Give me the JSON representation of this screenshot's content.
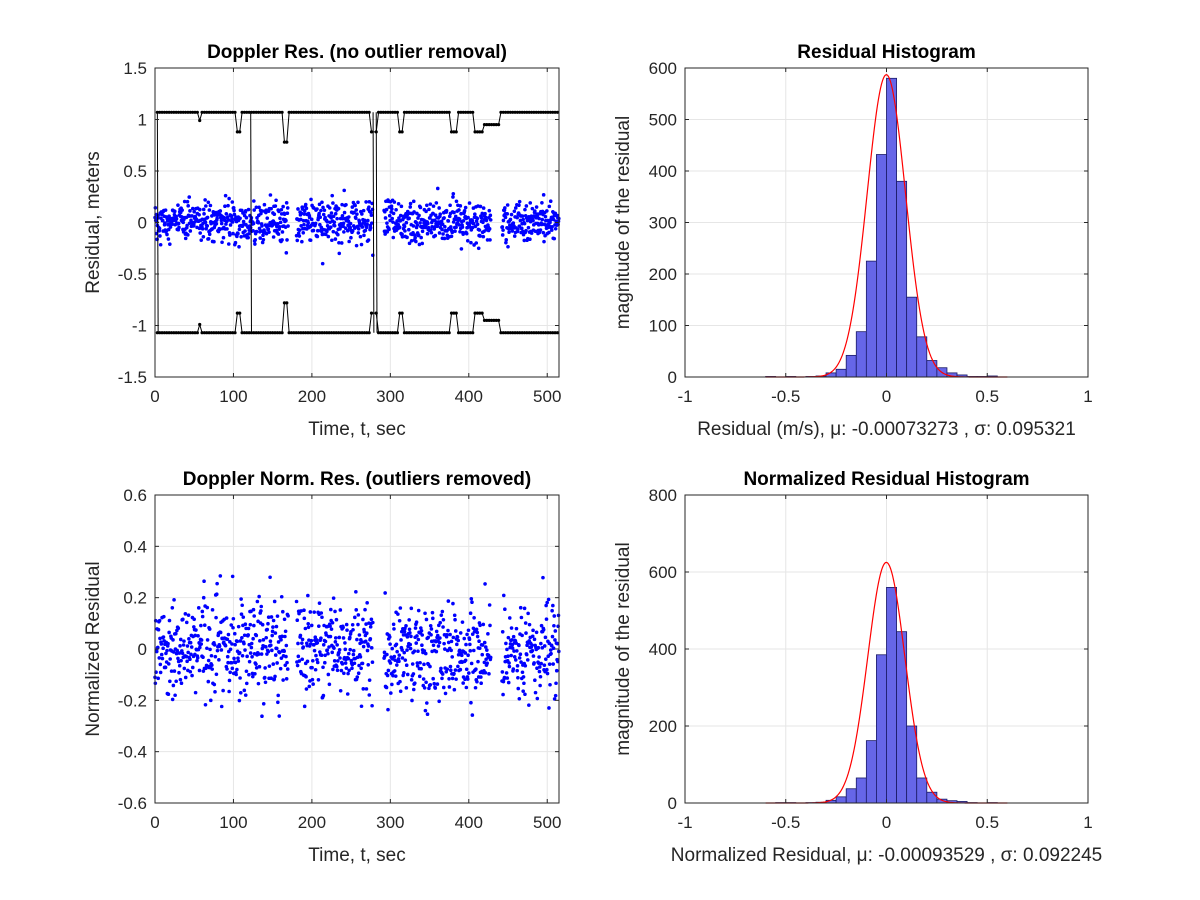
{
  "figure": {
    "background": "#ffffff"
  },
  "colors": {
    "scatter": "#0000ff",
    "outlier_trace": "#000000",
    "bar_fill": "#6666e8",
    "bar_edge": "#1a1a66",
    "fit_curve": "#ff0000",
    "grid": "#e6e6e6",
    "axis": "#262626"
  },
  "chart_data": [
    {
      "id": "p1",
      "type": "scatter",
      "title": "Doppler Res. (no outlier removal)",
      "xlabel": "Time, t, sec",
      "ylabel": "Residual, meters",
      "xlim": [
        0,
        515
      ],
      "ylim": [
        -1.5,
        1.5
      ],
      "xticks": [
        "0",
        "100",
        "200",
        "300",
        "400",
        "500"
      ],
      "xtick_values": [
        0,
        100,
        200,
        300,
        400,
        500
      ],
      "yticks": [
        "-1.5",
        "-1",
        "-0.5",
        "0",
        "0.5",
        "1",
        "1.5"
      ],
      "ytick_values": [
        -1.5,
        -1,
        -0.5,
        0,
        0.5,
        1,
        1.5
      ],
      "grid": true,
      "series": [
        {
          "kind": "scatter",
          "description": "residuals clustered about 0, std ~0.1 m, extremes ~+0.47 / -0.51 m",
          "gaps_sec": [
            [
              170,
              180
            ],
            [
              278,
              292
            ],
            [
              428,
              442
            ]
          ],
          "x_range": [
            0,
            515
          ],
          "approx_std": 0.1,
          "color": "#0000ff"
        },
        {
          "kind": "line",
          "description": "outlier traces at about +1.07 and -1.07 m with dips toward +/-0.78 m",
          "upper_level": 1.07,
          "lower_level": -1.07,
          "color": "#000000",
          "dips_sec": [
            [
              55,
              58,
              0.99
            ],
            [
              105,
              110,
              0.88
            ],
            [
              163,
              170,
              0.78
            ],
            [
              275,
              282,
              0.88
            ],
            [
              310,
              315,
              0.88
            ],
            [
              378,
              385,
              0.88
            ],
            [
              408,
              418,
              0.88
            ],
            [
              420,
              440,
              0.95
            ]
          ],
          "crossings_sec": [
            3,
            122,
            278,
            282
          ]
        }
      ]
    },
    {
      "id": "p2",
      "type": "bar",
      "title": "Residual Histogram",
      "xlabel": "Residual (m/s), μ: -0.00073273 , σ: 0.095321",
      "ylabel": "magnitude of the residual",
      "xlim": [
        -1,
        1
      ],
      "ylim": [
        0,
        600
      ],
      "xticks": [
        "-1",
        "-0.5",
        "0",
        "0.5",
        "1"
      ],
      "xtick_values": [
        -1,
        -0.5,
        0,
        0.5,
        1
      ],
      "yticks": [
        "0",
        "100",
        "200",
        "300",
        "400",
        "500",
        "600"
      ],
      "ytick_values": [
        0,
        100,
        200,
        300,
        400,
        500,
        600
      ],
      "grid": true,
      "bin_width": 0.05,
      "bin_centers": [
        -0.575,
        -0.525,
        -0.475,
        -0.425,
        -0.375,
        -0.325,
        -0.275,
        -0.225,
        -0.175,
        -0.125,
        -0.075,
        -0.025,
        0.025,
        0.075,
        0.125,
        0.175,
        0.225,
        0.275,
        0.325,
        0.375,
        0.425,
        0.475,
        0.525,
        0.575
      ],
      "values": [
        1,
        0,
        1,
        0,
        1,
        2,
        8,
        15,
        42,
        88,
        225,
        432,
        580,
        380,
        155,
        78,
        32,
        18,
        8,
        4,
        1,
        1,
        2,
        0
      ],
      "fit_curve": {
        "type": "normal",
        "mu": -0.00073273,
        "sigma": 0.095321,
        "peak": 587
      }
    },
    {
      "id": "p3",
      "type": "scatter",
      "title": "Doppler Norm. Res. (outliers removed)",
      "xlabel": "Time, t, sec",
      "ylabel": "Normalized Residual",
      "xlim": [
        0,
        515
      ],
      "ylim": [
        -0.6,
        0.6
      ],
      "xticks": [
        "0",
        "100",
        "200",
        "300",
        "400",
        "500"
      ],
      "xtick_values": [
        0,
        100,
        200,
        300,
        400,
        500
      ],
      "yticks": [
        "-0.6",
        "-0.4",
        "-0.2",
        "0",
        "0.2",
        "0.4",
        "0.6"
      ],
      "ytick_values": [
        -0.6,
        -0.4,
        -0.2,
        0,
        0.2,
        0.4,
        0.6
      ],
      "grid": true,
      "series": [
        {
          "kind": "scatter",
          "description": "normalized residuals clustered about 0, std ~0.09, extremes ~+0.58 / -0.47",
          "gaps_sec": [
            [
              170,
              180
            ],
            [
              278,
              292
            ],
            [
              428,
              442
            ]
          ],
          "x_range": [
            0,
            515
          ],
          "approx_std": 0.09,
          "color": "#0000ff"
        }
      ]
    },
    {
      "id": "p4",
      "type": "bar",
      "title": "Normalized Residual Histogram",
      "xlabel": "Normalized Residual, μ: -0.00093529 , σ: 0.092245",
      "ylabel": "magnitude of the residual",
      "xlim": [
        -1,
        1
      ],
      "ylim": [
        0,
        800
      ],
      "xticks": [
        "-1",
        "-0.5",
        "0",
        "0.5",
        "1"
      ],
      "xtick_values": [
        -1,
        -0.5,
        0,
        0.5,
        1
      ],
      "yticks": [
        "0",
        "200",
        "400",
        "600",
        "800"
      ],
      "ytick_values": [
        0,
        200,
        400,
        600,
        800
      ],
      "grid": true,
      "bin_width": 0.05,
      "bin_centers": [
        -0.575,
        -0.525,
        -0.475,
        -0.425,
        -0.375,
        -0.325,
        -0.275,
        -0.225,
        -0.175,
        -0.125,
        -0.075,
        -0.025,
        0.025,
        0.075,
        0.125,
        0.175,
        0.225,
        0.275,
        0.325,
        0.375,
        0.425,
        0.475,
        0.525,
        0.575
      ],
      "values": [
        0,
        1,
        1,
        0,
        1,
        2,
        7,
        16,
        37,
        65,
        162,
        385,
        560,
        445,
        200,
        65,
        28,
        10,
        6,
        4,
        1,
        0,
        1,
        0
      ],
      "fit_curve": {
        "type": "normal",
        "mu": -0.00093529,
        "sigma": 0.092245,
        "peak": 625
      }
    }
  ]
}
